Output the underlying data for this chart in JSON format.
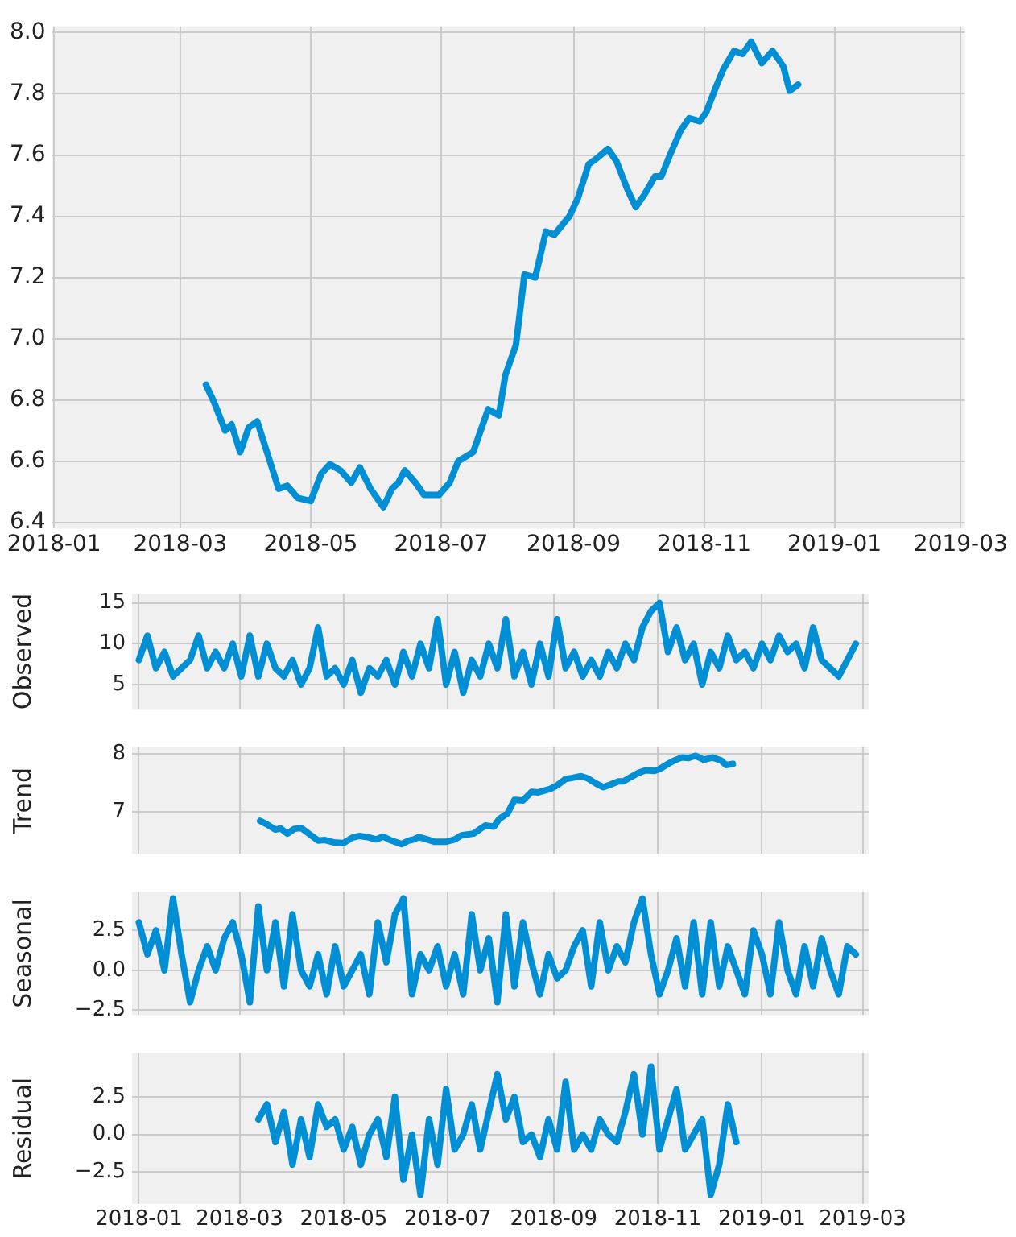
{
  "chart_data": [
    {
      "type": "line",
      "color": "#008fd5",
      "grid": true,
      "x": [
        "2018-03-13",
        "2018-03-17",
        "2018-03-22",
        "2018-03-25",
        "2018-03-29",
        "2018-04-02",
        "2018-04-06",
        "2018-04-11",
        "2018-04-16",
        "2018-04-20",
        "2018-04-25",
        "2018-05-01",
        "2018-05-06",
        "2018-05-10",
        "2018-05-15",
        "2018-05-20",
        "2018-05-24",
        "2018-05-29",
        "2018-06-04",
        "2018-06-08",
        "2018-06-11",
        "2018-06-14",
        "2018-06-19",
        "2018-06-23",
        "2018-06-30",
        "2018-07-05",
        "2018-07-09",
        "2018-07-16",
        "2018-07-20",
        "2018-07-23",
        "2018-07-28",
        "2018-07-31",
        "2018-08-05",
        "2018-08-09",
        "2018-08-14",
        "2018-08-19",
        "2018-08-23",
        "2018-08-30",
        "2018-09-03",
        "2018-09-08",
        "2018-09-12",
        "2018-09-17",
        "2018-09-21",
        "2018-09-26",
        "2018-09-30",
        "2018-10-04",
        "2018-10-09",
        "2018-10-12",
        "2018-10-16",
        "2018-10-21",
        "2018-10-25",
        "2018-10-30",
        "2018-11-02",
        "2018-11-07",
        "2018-11-10",
        "2018-11-15",
        "2018-11-19",
        "2018-11-23",
        "2018-11-28",
        "2018-12-03",
        "2018-12-08",
        "2018-12-11",
        "2018-12-15"
      ],
      "values": [
        6.85,
        6.79,
        6.7,
        6.72,
        6.63,
        6.71,
        6.73,
        6.62,
        6.51,
        6.52,
        6.48,
        6.47,
        6.56,
        6.59,
        6.57,
        6.53,
        6.58,
        6.51,
        6.45,
        6.51,
        6.53,
        6.57,
        6.53,
        6.49,
        6.49,
        6.53,
        6.6,
        6.63,
        6.71,
        6.77,
        6.75,
        6.88,
        6.98,
        7.21,
        7.2,
        7.35,
        7.34,
        7.4,
        7.46,
        7.57,
        7.59,
        7.62,
        7.58,
        7.49,
        7.43,
        7.47,
        7.53,
        7.53,
        7.6,
        7.68,
        7.72,
        7.71,
        7.74,
        7.83,
        7.88,
        7.94,
        7.93,
        7.97,
        7.9,
        7.94,
        7.89,
        7.81,
        7.83
      ],
      "xlim": [
        "2017-12-31",
        "2019-03-03"
      ],
      "xticks": [
        "2018-01",
        "2018-03",
        "2018-05",
        "2018-07",
        "2018-09",
        "2018-11",
        "2019-01",
        "2019-03"
      ],
      "ylim": [
        6.38,
        8.02
      ],
      "yticks": [
        {
          "value": 6.4,
          "label": "6.4"
        },
        {
          "value": 6.6,
          "label": "6.6"
        },
        {
          "value": 6.8,
          "label": "6.8"
        },
        {
          "value": 7,
          "label": "7.0"
        },
        {
          "value": 7.2,
          "label": "7.2"
        },
        {
          "value": 7.4,
          "label": "7.4"
        },
        {
          "value": 7.6,
          "label": "7.6"
        },
        {
          "value": 7.8,
          "label": "7.8"
        },
        {
          "value": 8,
          "label": "8.0"
        }
      ]
    },
    {
      "type": "line",
      "color": "#008fd5",
      "grid": true,
      "ylabel": "Observed",
      "tick_labels": "y",
      "x": [
        "2018-01-01",
        "2018-01-06",
        "2018-01-11",
        "2018-01-16",
        "2018-01-21",
        "2018-01-26",
        "2018-01-31",
        "2018-02-05",
        "2018-02-10",
        "2018-02-15",
        "2018-02-20",
        "2018-02-25",
        "2018-03-02",
        "2018-03-07",
        "2018-03-12",
        "2018-03-17",
        "2018-03-22",
        "2018-03-27",
        "2018-04-01",
        "2018-04-06",
        "2018-04-11",
        "2018-04-16",
        "2018-04-21",
        "2018-04-26",
        "2018-05-01",
        "2018-05-06",
        "2018-05-11",
        "2018-05-16",
        "2018-05-21",
        "2018-05-26",
        "2018-05-31",
        "2018-06-05",
        "2018-06-10",
        "2018-06-15",
        "2018-06-20",
        "2018-06-25",
        "2018-06-30",
        "2018-07-05",
        "2018-07-10",
        "2018-07-15",
        "2018-07-20",
        "2018-07-25",
        "2018-07-30",
        "2018-08-04",
        "2018-08-09",
        "2018-08-14",
        "2018-08-19",
        "2018-08-24",
        "2018-08-29",
        "2018-09-03",
        "2018-09-08",
        "2018-09-13",
        "2018-09-18",
        "2018-09-23",
        "2018-09-28",
        "2018-10-03",
        "2018-10-08",
        "2018-10-13",
        "2018-10-18",
        "2018-10-23",
        "2018-10-28",
        "2018-11-02",
        "2018-11-07",
        "2018-11-12",
        "2018-11-17",
        "2018-11-22",
        "2018-11-27",
        "2018-12-02",
        "2018-12-07",
        "2018-12-12",
        "2018-12-17",
        "2018-12-22",
        "2018-12-27",
        "2019-01-01",
        "2019-01-06",
        "2019-01-11",
        "2019-01-16",
        "2019-01-21",
        "2019-01-26",
        "2019-01-31",
        "2019-02-05",
        "2019-02-10",
        "2019-02-15",
        "2019-02-20",
        "2019-02-25"
      ],
      "values": [
        8,
        11,
        7,
        9,
        6,
        7,
        8,
        11,
        7,
        9,
        7,
        10,
        6,
        11,
        6,
        10,
        7,
        6,
        8,
        5,
        7,
        12,
        6,
        7,
        5,
        8,
        4,
        7,
        6,
        8,
        5,
        9,
        6,
        10,
        7,
        13,
        5,
        9,
        4,
        8,
        6,
        10,
        7,
        13,
        6,
        9,
        5,
        10,
        6,
        13,
        7,
        9,
        6,
        8,
        6,
        9,
        7,
        10,
        8,
        12,
        14,
        15,
        9,
        12,
        8,
        10,
        5,
        9,
        7,
        11,
        8,
        9,
        7,
        10,
        8,
        11,
        9,
        10,
        7,
        12,
        8,
        7,
        6,
        8,
        10
      ],
      "xlim": [
        "2017-12-28",
        "2019-03-05"
      ],
      "xticks": [
        "2018-01",
        "2018-03",
        "2018-05",
        "2018-07",
        "2018-09",
        "2018-11",
        "2019-01",
        "2019-03"
      ],
      "ylim": [
        2,
        16.1
      ],
      "yticks": [
        5,
        10,
        15
      ]
    },
    {
      "type": "line",
      "color": "#008fd5",
      "grid": true,
      "ylabel": "Trend",
      "tick_labels": "y",
      "x": [
        "2018-03-13",
        "2018-03-17",
        "2018-03-22",
        "2018-03-25",
        "2018-03-29",
        "2018-04-02",
        "2018-04-06",
        "2018-04-11",
        "2018-04-16",
        "2018-04-20",
        "2018-04-25",
        "2018-05-01",
        "2018-05-06",
        "2018-05-10",
        "2018-05-15",
        "2018-05-20",
        "2018-05-24",
        "2018-05-29",
        "2018-06-04",
        "2018-06-08",
        "2018-06-11",
        "2018-06-14",
        "2018-06-19",
        "2018-06-23",
        "2018-06-30",
        "2018-07-05",
        "2018-07-09",
        "2018-07-16",
        "2018-07-20",
        "2018-07-23",
        "2018-07-28",
        "2018-07-31",
        "2018-08-05",
        "2018-08-09",
        "2018-08-14",
        "2018-08-19",
        "2018-08-23",
        "2018-08-30",
        "2018-09-03",
        "2018-09-08",
        "2018-09-12",
        "2018-09-17",
        "2018-09-21",
        "2018-09-26",
        "2018-09-30",
        "2018-10-04",
        "2018-10-09",
        "2018-10-12",
        "2018-10-16",
        "2018-10-21",
        "2018-10-25",
        "2018-10-30",
        "2018-11-02",
        "2018-11-07",
        "2018-11-10",
        "2018-11-15",
        "2018-11-19",
        "2018-11-23",
        "2018-11-28",
        "2018-12-03",
        "2018-12-08",
        "2018-12-11",
        "2018-12-15"
      ],
      "values": [
        6.85,
        6.79,
        6.7,
        6.72,
        6.63,
        6.71,
        6.73,
        6.62,
        6.51,
        6.52,
        6.48,
        6.47,
        6.56,
        6.59,
        6.57,
        6.53,
        6.58,
        6.51,
        6.45,
        6.51,
        6.53,
        6.57,
        6.53,
        6.49,
        6.49,
        6.53,
        6.6,
        6.63,
        6.71,
        6.77,
        6.75,
        6.88,
        6.98,
        7.21,
        7.2,
        7.35,
        7.34,
        7.4,
        7.46,
        7.57,
        7.59,
        7.62,
        7.58,
        7.49,
        7.43,
        7.47,
        7.53,
        7.53,
        7.6,
        7.68,
        7.72,
        7.71,
        7.74,
        7.83,
        7.88,
        7.94,
        7.93,
        7.97,
        7.9,
        7.94,
        7.89,
        7.81,
        7.83
      ],
      "xlim": [
        "2017-12-28",
        "2019-03-05"
      ],
      "xticks": [
        "2018-01",
        "2018-03",
        "2018-05",
        "2018-07",
        "2018-09",
        "2018-11",
        "2019-01",
        "2019-03"
      ],
      "ylim": [
        6.28,
        8.12
      ],
      "yticks": [
        7,
        8
      ]
    },
    {
      "type": "line",
      "color": "#008fd5",
      "grid": true,
      "ylabel": "Seasonal",
      "tick_labels": "y",
      "x": [
        "2018-01-01",
        "2018-01-06",
        "2018-01-11",
        "2018-01-16",
        "2018-01-21",
        "2018-01-26",
        "2018-01-31",
        "2018-02-05",
        "2018-02-10",
        "2018-02-15",
        "2018-02-20",
        "2018-02-25",
        "2018-03-02",
        "2018-03-07",
        "2018-03-12",
        "2018-03-17",
        "2018-03-22",
        "2018-03-27",
        "2018-04-01",
        "2018-04-06",
        "2018-04-11",
        "2018-04-16",
        "2018-04-21",
        "2018-04-26",
        "2018-05-01",
        "2018-05-06",
        "2018-05-11",
        "2018-05-16",
        "2018-05-21",
        "2018-05-26",
        "2018-05-31",
        "2018-06-05",
        "2018-06-10",
        "2018-06-15",
        "2018-06-20",
        "2018-06-25",
        "2018-06-30",
        "2018-07-05",
        "2018-07-10",
        "2018-07-15",
        "2018-07-20",
        "2018-07-25",
        "2018-07-30",
        "2018-08-04",
        "2018-08-09",
        "2018-08-14",
        "2018-08-19",
        "2018-08-24",
        "2018-08-29",
        "2018-09-03",
        "2018-09-08",
        "2018-09-13",
        "2018-09-18",
        "2018-09-23",
        "2018-09-28",
        "2018-10-03",
        "2018-10-08",
        "2018-10-13",
        "2018-10-18",
        "2018-10-23",
        "2018-10-28",
        "2018-11-02",
        "2018-11-07",
        "2018-11-12",
        "2018-11-17",
        "2018-11-22",
        "2018-11-27",
        "2018-12-02",
        "2018-12-07",
        "2018-12-12",
        "2018-12-17",
        "2018-12-22",
        "2018-12-27",
        "2019-01-01",
        "2019-01-06",
        "2019-01-11",
        "2019-01-16",
        "2019-01-21",
        "2019-01-26",
        "2019-01-31",
        "2019-02-05",
        "2019-02-10",
        "2019-02-15",
        "2019-02-20",
        "2019-02-25"
      ],
      "values": [
        3,
        1,
        2.5,
        0,
        4.5,
        1,
        -2,
        0,
        1.5,
        0,
        2,
        3,
        1,
        -2,
        4,
        0,
        3,
        -1,
        3.5,
        0,
        -1,
        1,
        -1.5,
        1.5,
        -1,
        0,
        1,
        -1.5,
        3,
        0.5,
        3.5,
        4.5,
        -1.5,
        1,
        0,
        1.5,
        -1,
        1,
        -1.5,
        3.5,
        0,
        2,
        -2,
        3.5,
        -1,
        3,
        0.5,
        -1.5,
        1,
        -0.5,
        0,
        1.5,
        2.5,
        -1,
        3,
        0,
        1.5,
        0.5,
        3,
        4.5,
        1,
        -1.5,
        0,
        2,
        -1,
        3,
        -1.5,
        3,
        -1,
        1.5,
        0,
        -1.5,
        2.5,
        1,
        -1.5,
        3,
        0,
        -1.5,
        1.5,
        -1,
        2,
        0,
        -1.5,
        1.5,
        1
      ],
      "xlim": [
        "2017-12-28",
        "2019-03-05"
      ],
      "xticks": [
        "2018-01",
        "2018-03",
        "2018-05",
        "2018-07",
        "2018-09",
        "2018-11",
        "2019-01",
        "2019-03"
      ],
      "ylim": [
        -2.8,
        4.9
      ],
      "yticks": [
        {
          "value": -2.5,
          "label": "−2.5"
        },
        {
          "value": 0,
          "label": "0.0"
        },
        {
          "value": 2.5,
          "label": "2.5"
        }
      ]
    },
    {
      "type": "line",
      "color": "#008fd5",
      "grid": true,
      "ylabel": "Residual",
      "x": [
        "2018-03-12",
        "2018-03-17",
        "2018-03-22",
        "2018-03-27",
        "2018-04-01",
        "2018-04-06",
        "2018-04-11",
        "2018-04-16",
        "2018-04-21",
        "2018-04-26",
        "2018-05-01",
        "2018-05-06",
        "2018-05-11",
        "2018-05-16",
        "2018-05-21",
        "2018-05-26",
        "2018-05-31",
        "2018-06-05",
        "2018-06-10",
        "2018-06-15",
        "2018-06-20",
        "2018-06-25",
        "2018-06-30",
        "2018-07-05",
        "2018-07-10",
        "2018-07-15",
        "2018-07-20",
        "2018-07-25",
        "2018-07-30",
        "2018-08-04",
        "2018-08-09",
        "2018-08-14",
        "2018-08-19",
        "2018-08-24",
        "2018-08-29",
        "2018-09-03",
        "2018-09-08",
        "2018-09-13",
        "2018-09-18",
        "2018-09-23",
        "2018-09-28",
        "2018-10-03",
        "2018-10-08",
        "2018-10-13",
        "2018-10-18",
        "2018-10-23",
        "2018-10-28",
        "2018-11-02",
        "2018-11-07",
        "2018-11-12",
        "2018-11-17",
        "2018-11-22",
        "2018-11-27",
        "2018-12-02",
        "2018-12-07",
        "2018-12-12",
        "2018-12-17"
      ],
      "values": [
        1,
        2,
        -0.5,
        1.5,
        -2,
        1,
        -1.5,
        2,
        0.5,
        1,
        -1,
        0.5,
        -2,
        0,
        1,
        -1.5,
        2.5,
        -3,
        0,
        -4,
        1,
        -2,
        3,
        -1,
        0,
        2,
        -1,
        1.5,
        4,
        1,
        2.5,
        -0.5,
        0,
        -1.5,
        1,
        -1,
        3.5,
        -1,
        0,
        -1,
        1,
        0,
        -0.5,
        1.5,
        4,
        0,
        4.5,
        -1,
        1,
        3,
        -1,
        0,
        1,
        -4,
        -2,
        2,
        -0.5
      ],
      "xlim": [
        "2017-12-28",
        "2019-03-05"
      ],
      "xticks": [
        "2018-01",
        "2018-03",
        "2018-05",
        "2018-07",
        "2018-09",
        "2018-11",
        "2019-01",
        "2019-03"
      ],
      "ylim": [
        -4.6,
        5.4
      ],
      "yticks": [
        {
          "value": -2.5,
          "label": "−2.5"
        },
        {
          "value": 0,
          "label": "0.0"
        },
        {
          "value": 2.5,
          "label": "2.5"
        }
      ]
    }
  ]
}
